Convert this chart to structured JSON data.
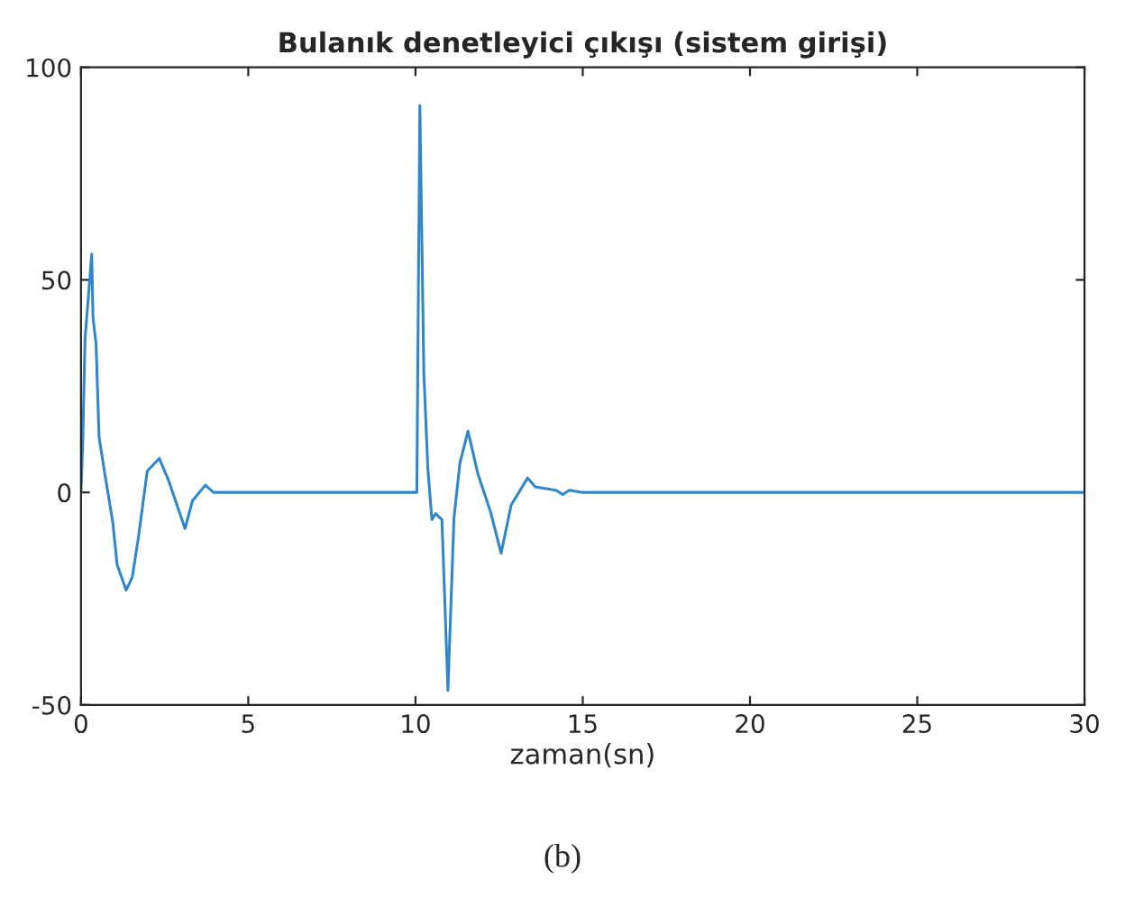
{
  "chart_data": {
    "type": "line",
    "title": "Bulanık denetleyici çıkışı (sistem girişi)",
    "xlabel": "zaman(sn)",
    "annotations": [
      "(b)"
    ],
    "x": [
      0,
      0.05,
      0.12,
      0.32,
      0.36,
      0.45,
      0.54,
      0.72,
      0.95,
      1.08,
      1.35,
      1.53,
      1.71,
      1.98,
      2.34,
      2.61,
      3.11,
      3.33,
      3.72,
      3.96,
      10.0,
      10.04,
      10.13,
      10.25,
      10.37,
      10.49,
      10.6,
      10.79,
      10.97,
      11.15,
      11.33,
      11.57,
      11.87,
      12.23,
      12.56,
      12.86,
      13.35,
      13.58,
      14.2,
      14.4,
      14.6,
      15,
      30
    ],
    "series": [
      {
        "color": "#2f86cc",
        "values": [
          0,
          11,
          36,
          56,
          41,
          35,
          13,
          4,
          -7,
          -17,
          -23,
          -20,
          -11,
          5,
          8,
          3,
          -8.5,
          -2,
          1.7,
          0,
          0,
          0,
          91,
          28,
          5.5,
          -6.4,
          -5,
          -6.4,
          -46.6,
          -6,
          7,
          14.4,
          4.2,
          -4.2,
          -14.3,
          -3,
          3.4,
          1.3,
          0.5,
          -0.5,
          0.5,
          0,
          0
        ]
      }
    ],
    "xlim": [
      0,
      30
    ],
    "xticks": [
      0,
      5,
      10,
      15,
      20,
      25,
      30
    ],
    "ylim": [
      -50,
      100
    ],
    "yticks": [
      -50,
      0,
      50,
      100
    ],
    "grid": false,
    "legend": false
  }
}
